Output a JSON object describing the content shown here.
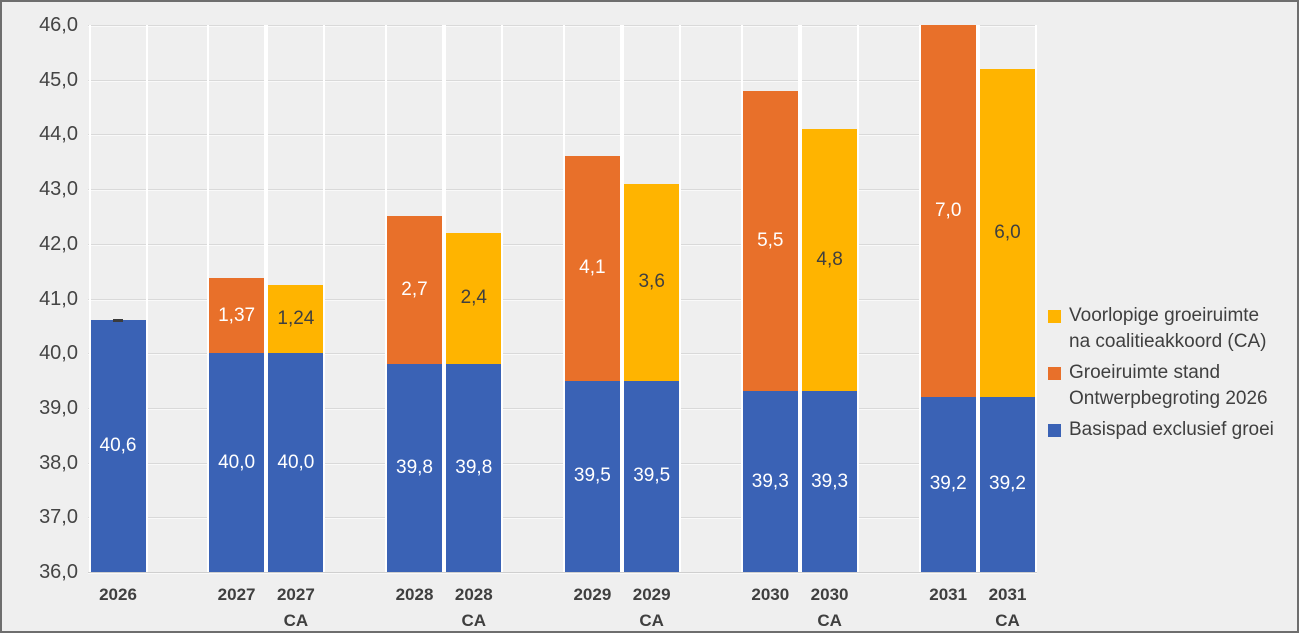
{
  "chart_data": {
    "type": "bar",
    "subtype": "stacked-column",
    "title": "",
    "xlabel": "",
    "ylabel": "",
    "ylim": [
      36,
      46
    ],
    "ytick_step": 1,
    "ytick_labels": [
      "36,0",
      "37,0",
      "38,0",
      "39,0",
      "40,0",
      "41,0",
      "42,0",
      "43,0",
      "44,0",
      "45,0",
      "46,0"
    ],
    "grid": true,
    "legend_position": "right",
    "categories": [
      "2026",
      "2027",
      "2027\nCA",
      "2028",
      "2028\nCA",
      "2029",
      "2029\nCA",
      "2030",
      "2030\nCA",
      "2031",
      "2031\nCA"
    ],
    "series": [
      {
        "name": "Basispad exclusief groei",
        "color": "#3a62b5",
        "label_color": "#ffffff",
        "values": [
          40.6,
          40.0,
          40.0,
          39.8,
          39.8,
          39.5,
          39.5,
          39.3,
          39.3,
          39.2,
          39.2
        ],
        "labels": [
          "40,6",
          "40,0",
          "40,0",
          "39,8",
          "39,8",
          "39,5",
          "39,5",
          "39,3",
          "39,3",
          "39,2",
          "39,2"
        ]
      },
      {
        "name": "Groeiruimte stand Ontwerpbegroting 2026",
        "color": "#e8702a",
        "label_color": "#ffffff",
        "values": [
          0,
          1.37,
          0,
          2.7,
          0,
          4.1,
          0,
          5.5,
          0,
          7.0,
          0
        ],
        "labels": [
          "",
          "1,37",
          "",
          "2,7",
          "",
          "4,1",
          "",
          "5,5",
          "",
          "7,0",
          ""
        ]
      },
      {
        "name": "Voorlopige groeiruimte na coalitieakkoord (CA)",
        "color": "#ffb400",
        "label_color": "#3f3f3f",
        "values": [
          0,
          0,
          1.24,
          0,
          2.4,
          0,
          3.6,
          0,
          4.8,
          0,
          6.0
        ],
        "labels": [
          "",
          "",
          "1,24",
          "",
          "2,4",
          "",
          "3,6",
          "",
          "4,8",
          "",
          "6,0"
        ]
      }
    ],
    "annotations": [
      {
        "type": "dash-marker",
        "category_index": 0,
        "at_value": 40.6,
        "note": "small dark dash at top of 2026 bar"
      }
    ],
    "legend": [
      {
        "color": "#ffb400",
        "text": "Voorlopige groeiruimte\nna coalitieakkoord (CA)"
      },
      {
        "color": "#e8702a",
        "text": "Groeiruimte stand\nOntwerpbegroting 2026"
      },
      {
        "color": "#3a62b5",
        "text": "Basispad exclusief groei"
      }
    ]
  }
}
